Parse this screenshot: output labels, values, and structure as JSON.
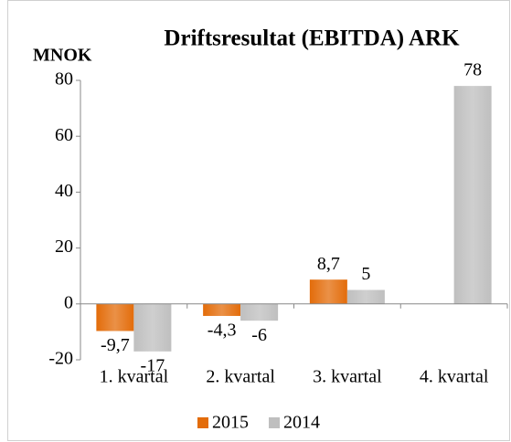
{
  "chart_data": {
    "type": "bar",
    "title": "Driftsresultat (EBITDA) ARK",
    "y_label": "MNOK",
    "categories": [
      "1. kvartal",
      "2. kvartal",
      "3. kvartal",
      "4. kvartal"
    ],
    "series": [
      {
        "name": "2015",
        "color": "#e36c0a",
        "values": [
          -9.7,
          -4.3,
          8.7,
          null
        ],
        "value_labels": [
          "-9,7",
          "-4,3",
          "8,7",
          null
        ]
      },
      {
        "name": "2014",
        "color": "#bfbfbf",
        "values": [
          -17,
          -6,
          5,
          78
        ],
        "value_labels": [
          "-17",
          "-6",
          "5",
          "78"
        ]
      }
    ],
    "ylim": [
      -20,
      80
    ],
    "yticks": [
      -20,
      0,
      20,
      40,
      60,
      80
    ],
    "grid": false,
    "legend": "bottom"
  }
}
